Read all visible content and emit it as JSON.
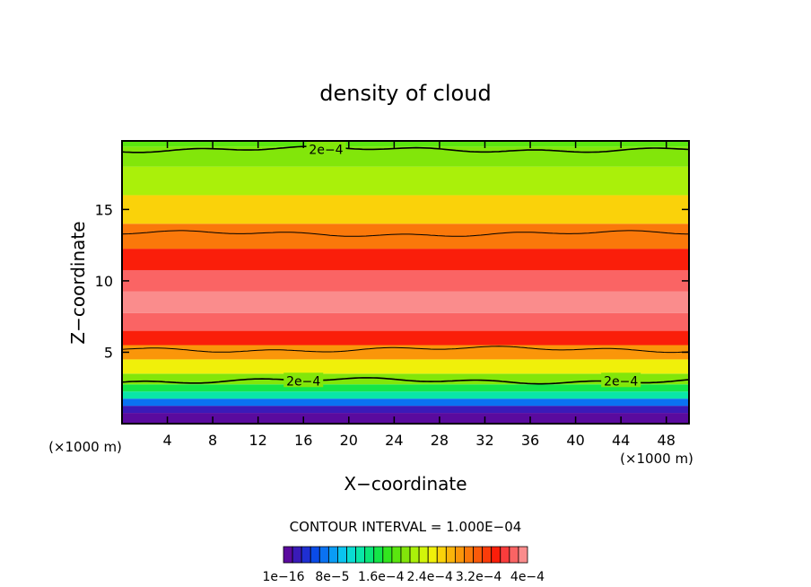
{
  "chart_data": {
    "type": "heatmap",
    "title": "density of cloud",
    "xlabel": "X−coordinate",
    "ylabel": "Z−coordinate",
    "x_unit_left": "(×1000 m)",
    "x_unit_right": "(×1000 m)",
    "xlim": [
      0,
      50
    ],
    "ylim": [
      0,
      19.8
    ],
    "xticks": [
      4,
      8,
      12,
      16,
      20,
      24,
      28,
      32,
      36,
      40,
      44,
      48
    ],
    "yticks": [
      5,
      10,
      15
    ],
    "contour_interval_text": "CONTOUR INTERVAL = 1.000E−04",
    "contour_label": "2e−4",
    "colorbar_labels": [
      "1e−16",
      "8e−5",
      "1.6e−4",
      "2.4e−4",
      "3.2e−4",
      "4e−4"
    ],
    "colorbar_colors": [
      "#5a0a9e",
      "#3a1ab8",
      "#1f2fd2",
      "#0a4be8",
      "#0a72f2",
      "#0a9cf5",
      "#0ac4f0",
      "#0adcd2",
      "#0ae6a8",
      "#0ae678",
      "#14e648",
      "#32e61e",
      "#5ae60f",
      "#82e60a",
      "#aaf00a",
      "#d2f50a",
      "#f0f00a",
      "#fad20a",
      "#fab40a",
      "#fa960a",
      "#fa780a",
      "#fa5a0a",
      "#fa3c0a",
      "#fa1e0a",
      "#fa3c3c",
      "#fa6464",
      "#fa8c8c"
    ],
    "vertical_profile": [
      {
        "z": 0.5,
        "value": 0
      },
      {
        "z": 1.0,
        "value": 2e-05
      },
      {
        "z": 1.5,
        "value": 6e-05
      },
      {
        "z": 2.0,
        "value": 0.00012
      },
      {
        "z": 2.5,
        "value": 0.00016
      },
      {
        "z": 3.0,
        "value": 0.0002
      },
      {
        "z": 4.0,
        "value": 0.00024
      },
      {
        "z": 5.0,
        "value": 0.0003
      },
      {
        "z": 6.0,
        "value": 0.00036
      },
      {
        "z": 7.0,
        "value": 0.00038
      },
      {
        "z": 8.5,
        "value": 0.0004
      },
      {
        "z": 10.0,
        "value": 0.00039
      },
      {
        "z": 11.5,
        "value": 0.00036
      },
      {
        "z": 13.0,
        "value": 0.00031
      },
      {
        "z": 15.0,
        "value": 0.00026
      },
      {
        "z": 17.0,
        "value": 0.00022
      },
      {
        "z": 19.0,
        "value": 0.0002
      },
      {
        "z": 19.8,
        "value": 0.00018
      }
    ],
    "contour_lines_z": [
      19.2,
      13.3,
      5.2,
      3.0
    ]
  }
}
